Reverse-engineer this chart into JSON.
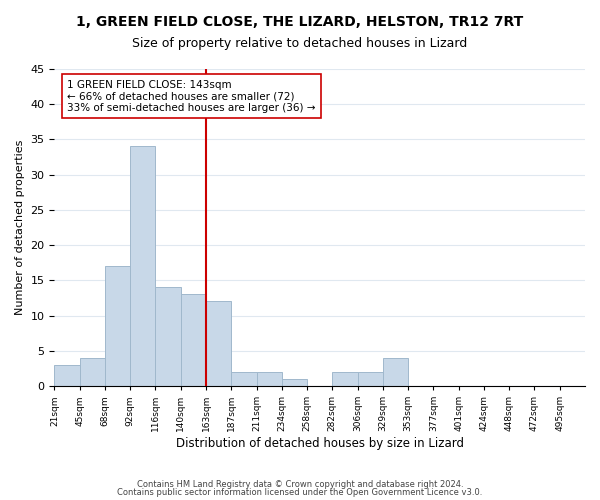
{
  "title": "1, GREEN FIELD CLOSE, THE LIZARD, HELSTON, TR12 7RT",
  "subtitle": "Size of property relative to detached houses in Lizard",
  "xlabel": "Distribution of detached houses by size in Lizard",
  "ylabel": "Number of detached properties",
  "bar_color": "#c8d8e8",
  "bar_edge_color": "#a0b8cc",
  "bin_labels": [
    "21sqm",
    "45sqm",
    "68sqm",
    "92sqm",
    "116sqm",
    "140sqm",
    "163sqm",
    "187sqm",
    "211sqm",
    "234sqm",
    "258sqm",
    "282sqm",
    "306sqm",
    "329sqm",
    "353sqm",
    "377sqm",
    "401sqm",
    "424sqm",
    "448sqm",
    "472sqm",
    "495sqm"
  ],
  "bar_values": [
    3,
    4,
    17,
    34,
    14,
    13,
    12,
    2,
    2,
    1,
    0,
    2,
    2,
    4,
    0,
    0,
    0,
    0,
    0,
    0,
    0
  ],
  "ylim": [
    0,
    45
  ],
  "yticks": [
    0,
    5,
    10,
    15,
    20,
    25,
    30,
    35,
    40,
    45
  ],
  "property_line_bin": 5,
  "annotation_title": "1 GREEN FIELD CLOSE: 143sqm",
  "annotation_line1": "← 66% of detached houses are smaller (72)",
  "annotation_line2": "33% of semi-detached houses are larger (36) →",
  "footer1": "Contains HM Land Registry data © Crown copyright and database right 2024.",
  "footer2": "Contains public sector information licensed under the Open Government Licence v3.0.",
  "grid_color": "#e0e8f0",
  "line_color": "#cc0000",
  "annotation_box_edge": "#cc0000"
}
